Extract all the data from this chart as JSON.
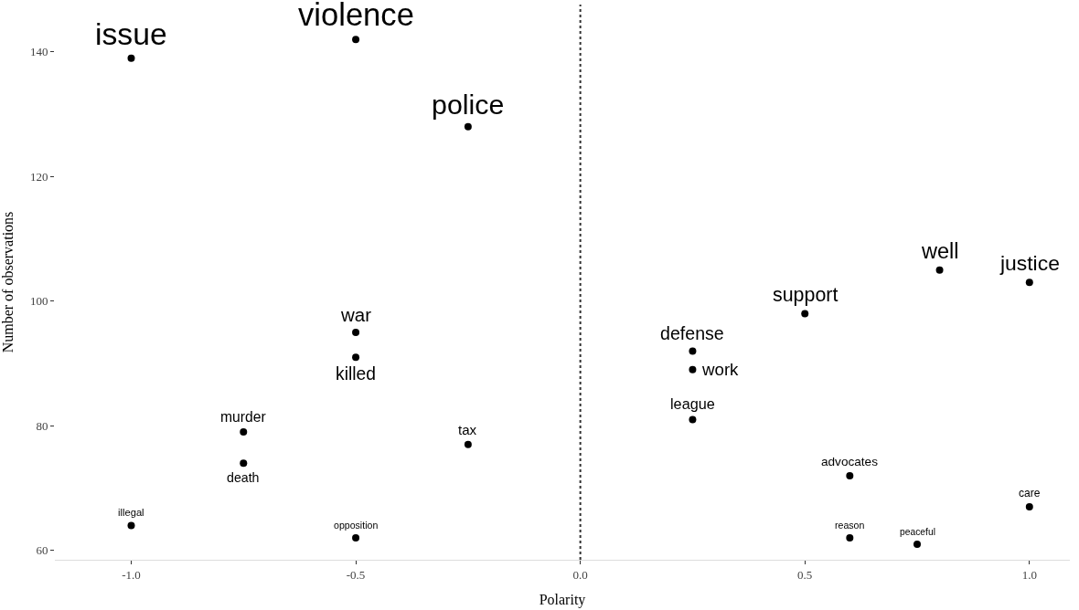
{
  "chart_data": {
    "type": "scatter",
    "xlabel": "Polarity",
    "ylabel": "Number of observations",
    "x": [
      -1.0,
      -0.5,
      -0.25,
      -0.5,
      -0.5,
      -0.75,
      -0.75,
      -0.25,
      -1.0,
      -0.5,
      0.25,
      0.25,
      0.25,
      0.5,
      0.8,
      1.0,
      0.6,
      1.0,
      0.6,
      0.75
    ],
    "series": [
      {
        "color": "#000000",
        "values": [
          139,
          142,
          128,
          95,
          91,
          79,
          74,
          77,
          64,
          62,
          92,
          89,
          81,
          98,
          105,
          103,
          72,
          67,
          62,
          61
        ]
      }
    ],
    "annotations": [
      {
        "text": "issue",
        "x": -1.0,
        "y": 139
      },
      {
        "text": "violence",
        "x": -0.5,
        "y": 142
      },
      {
        "text": "police",
        "x": -0.25,
        "y": 128
      },
      {
        "text": "war",
        "x": -0.5,
        "y": 95
      },
      {
        "text": "killed",
        "x": -0.5,
        "y": 91
      },
      {
        "text": "murder",
        "x": -0.75,
        "y": 79
      },
      {
        "text": "death",
        "x": -0.75,
        "y": 74
      },
      {
        "text": "tax",
        "x": -0.25,
        "y": 77
      },
      {
        "text": "illegal",
        "x": -1.0,
        "y": 64
      },
      {
        "text": "opposition",
        "x": -0.5,
        "y": 62
      },
      {
        "text": "defense",
        "x": 0.25,
        "y": 92
      },
      {
        "text": "work",
        "x": 0.25,
        "y": 89
      },
      {
        "text": "league",
        "x": 0.25,
        "y": 81
      },
      {
        "text": "support",
        "x": 0.5,
        "y": 98
      },
      {
        "text": "well",
        "x": 0.8,
        "y": 105
      },
      {
        "text": "justice",
        "x": 1.0,
        "y": 103
      },
      {
        "text": "advocates",
        "x": 0.6,
        "y": 72
      },
      {
        "text": "care",
        "x": 1.0,
        "y": 67
      },
      {
        "text": "reason",
        "x": 0.6,
        "y": 62
      },
      {
        "text": "peaceful",
        "x": 0.75,
        "y": 61
      }
    ],
    "ref_lines": [
      {
        "axis": "x",
        "value": 0,
        "line_style": "dotted",
        "color": "#333333"
      }
    ],
    "xlim": [
      -1.17,
      1.09
    ],
    "ylim": [
      58.5,
      147.6
    ],
    "xticks": [
      {
        "value": -1.0,
        "label": "-1.0"
      },
      {
        "value": -0.5,
        "label": "-0.5"
      },
      {
        "value": 0,
        "label": "0.0"
      },
      {
        "value": 0.5,
        "label": "0.5"
      },
      {
        "value": 1.0,
        "label": "1.0"
      }
    ],
    "yticks": [
      60,
      80,
      100,
      120,
      140
    ],
    "marker": "circle"
  }
}
